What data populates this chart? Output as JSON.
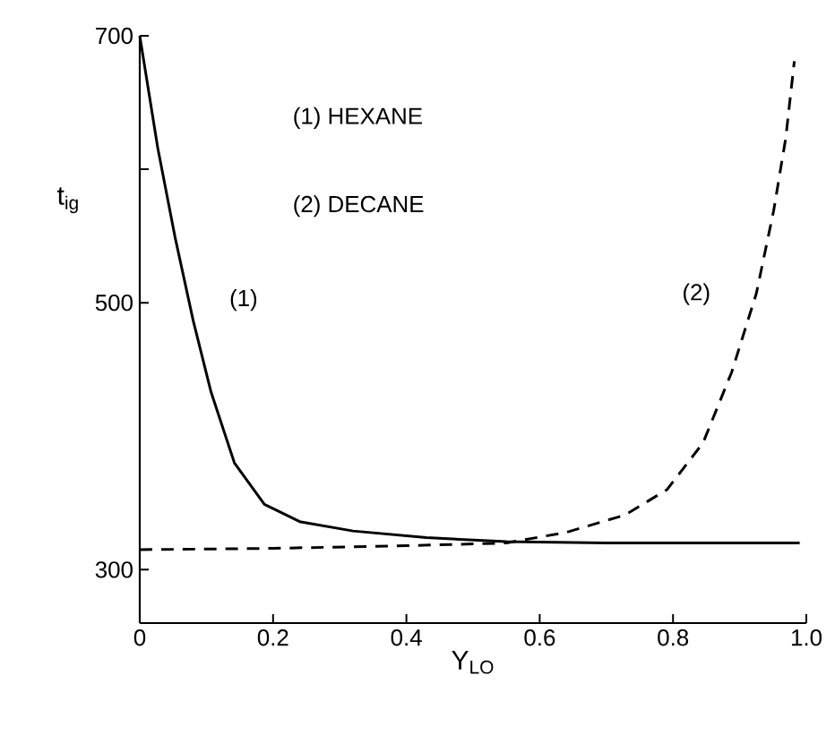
{
  "chart_data": {
    "type": "line",
    "xlabel": "Y$_{LO}$",
    "ylabel": "t$_{ig}$",
    "xlim": [
      0,
      1
    ],
    "ylim": [
      260,
      700
    ],
    "xticks": [
      0,
      0.2,
      0.4,
      0.6,
      0.8,
      {
        "value": 1,
        "label": "1.0"
      }
    ],
    "yticks": [
      300,
      500,
      {
        "value": 600,
        "label": null
      },
      700
    ],
    "marker": "none",
    "series": [
      {
        "color": "#000000",
        "line_style": "solid",
        "x": [
          0,
          0.027,
          0.053,
          0.08,
          0.107,
          0.142,
          0.187,
          0.24,
          0.32,
          0.43,
          0.55,
          0.7,
          0.85,
          0.99
        ],
        "values": [
          700,
          616,
          549,
          487,
          433,
          380,
          349,
          336,
          329,
          324,
          321,
          320,
          320,
          320
        ]
      },
      {
        "color": "#000000",
        "line_style": "dashed",
        "x": [
          0,
          0.2,
          0.4,
          0.55,
          0.64,
          0.728,
          0.791,
          0.845,
          0.888,
          0.925,
          0.951,
          0.969,
          0.982
        ],
        "values": [
          315,
          316,
          318,
          320,
          328,
          341,
          360,
          395,
          448,
          507,
          569,
          623,
          681
        ]
      }
    ],
    "annotations": [
      "(1) HEXANE",
      "(2) DECANE",
      "(1)",
      "(2)"
    ]
  }
}
